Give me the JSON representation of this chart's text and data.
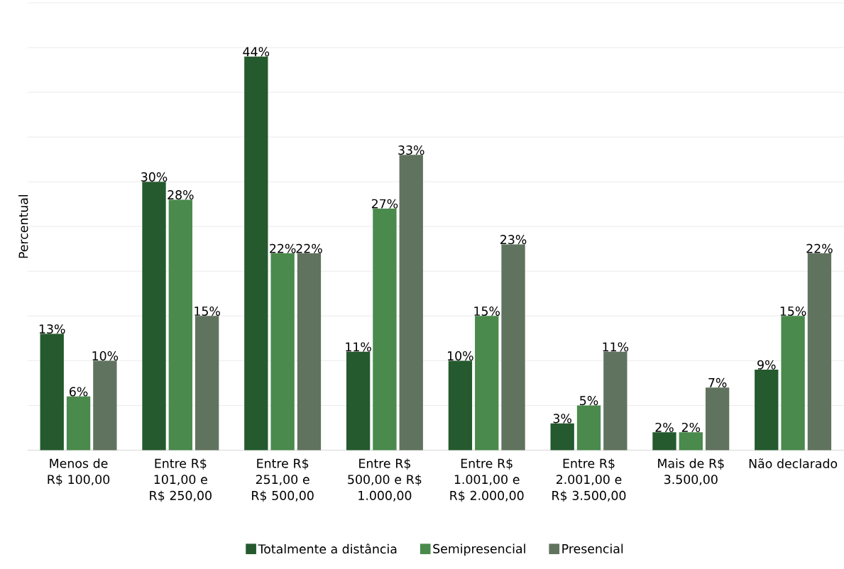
{
  "chart_data": {
    "type": "bar",
    "ylabel": "Percentual",
    "categories": [
      "Menos de R$ 100,00",
      "Entre R$ 101,00 e R$ 250,00",
      "Entre R$ 251,00 e R$ 500,00",
      "Entre R$ 500,00 e R$ 1.000,00",
      "Entre R$ 1.001,00 e R$ 2.000,00",
      "Entre R$ 2.001,00 e R$ 3.500,00",
      "Mais de R$ 3.500,00",
      "Não declarado"
    ],
    "series": [
      {
        "name": "Totalmente a distância",
        "color": "#245a2e",
        "values": [
          13,
          30,
          44,
          11,
          10,
          3,
          2,
          9
        ],
        "value_labels": [
          "13%",
          "30%",
          "44%",
          "11%",
          "10%",
          "3%",
          "2%",
          "9%"
        ]
      },
      {
        "name": "Semipresencial",
        "color": "#4a8a4c",
        "values": [
          6,
          28,
          22,
          27,
          15,
          5,
          2,
          15
        ],
        "value_labels": [
          "6%",
          "28%",
          "22%",
          "27%",
          "15%",
          "5%",
          "2%",
          "15%"
        ]
      },
      {
        "name": "Presencial",
        "color": "#60735e",
        "values": [
          10,
          15,
          22,
          33,
          23,
          11,
          7,
          22
        ],
        "value_labels": [
          "10%",
          "15%",
          "22%",
          "33%",
          "23%",
          "11%",
          "7%",
          "22%"
        ]
      }
    ],
    "ylim": [
      0,
      50
    ],
    "yticks": [
      0,
      5,
      10,
      15,
      20,
      25,
      30,
      35,
      40,
      45,
      50
    ],
    "tick_labels": "x",
    "grid": "y",
    "legend": "bottom"
  }
}
